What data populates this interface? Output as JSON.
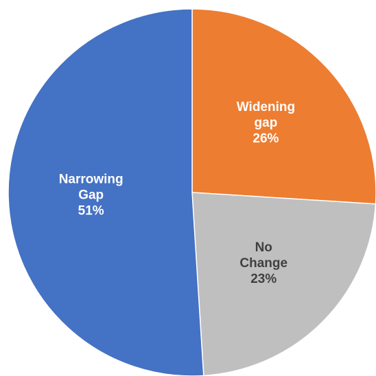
{
  "chart_data": {
    "type": "pie",
    "categories": [
      "Widening gap",
      "No Change",
      "Narrowing Gap"
    ],
    "values": [
      26,
      23,
      51
    ],
    "value_labels": [
      "26%",
      "23%",
      "51%"
    ],
    "colors": [
      "#ed7d31",
      "#bfbfbf",
      "#4472c4"
    ],
    "start_angle": 0,
    "direction": "clockwise"
  }
}
